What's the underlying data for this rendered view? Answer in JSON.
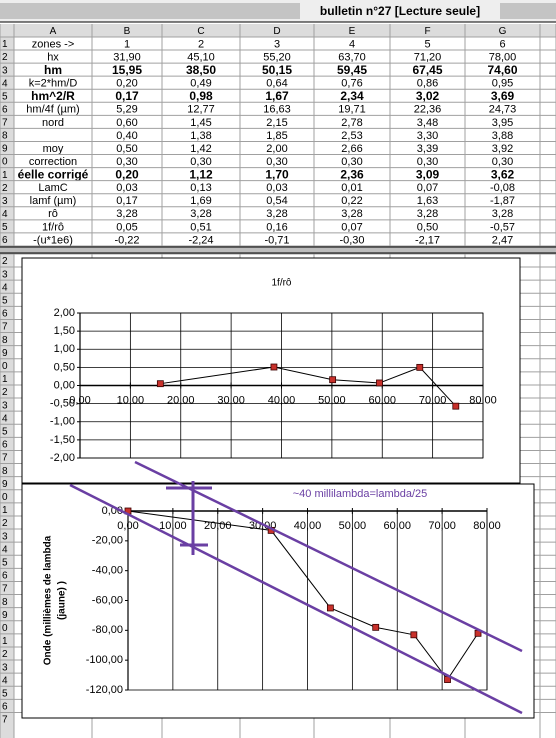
{
  "window": {
    "title": "bulletin n°27  [Lecture seule]"
  },
  "sheet": {
    "columns": [
      "A",
      "B",
      "C",
      "D",
      "E",
      "F",
      "G"
    ],
    "row_numbers": [
      "1",
      "2",
      "3",
      "4",
      "5",
      "6",
      "7",
      "8",
      "9",
      "0",
      "1",
      "2",
      "3",
      "4",
      "5",
      "6"
    ],
    "rows": [
      [
        "zones ->",
        "1",
        "2",
        "3",
        "4",
        "5",
        "6"
      ],
      [
        "hx",
        "31,90",
        "45,10",
        "55,20",
        "63,70",
        "71,20",
        "78,00"
      ],
      [
        "hm",
        "15,95",
        "38,50",
        "50,15",
        "59,45",
        "67,45",
        "74,60"
      ],
      [
        "k=2*hm/D",
        "0,20",
        "0,49",
        "0,64",
        "0,76",
        "0,86",
        "0,95"
      ],
      [
        "hm^2/R",
        "0,17",
        "0,98",
        "1,67",
        "2,34",
        "3,02",
        "3,69"
      ],
      [
        "hm/4f (µm)",
        "5,29",
        "12,77",
        "16,63",
        "19,71",
        "22,36",
        "24,73"
      ],
      [
        "nord",
        "0,60",
        "1,45",
        "2,15",
        "2,78",
        "3,48",
        "3,95"
      ],
      [
        "",
        "0,40",
        "1,38",
        "1,85",
        "2,53",
        "3,30",
        "3,88"
      ],
      [
        "moy",
        "0,50",
        "1,42",
        "2,00",
        "2,66",
        "3,39",
        "3,92"
      ],
      [
        "correction",
        "0,30",
        "0,30",
        "0,30",
        "0,30",
        "0,30",
        "0,30"
      ],
      [
        "éelle corrigé",
        "0,20",
        "1,12",
        "1,70",
        "2,36",
        "3,09",
        "3,62"
      ],
      [
        "LamC",
        "0,03",
        "0,13",
        "0,03",
        "0,01",
        "0,07",
        "-0,08"
      ],
      [
        "lamf (µm)",
        "0,17",
        "1,69",
        "0,54",
        "0,22",
        "1,63",
        "-1,87"
      ],
      [
        "rô",
        "3,28",
        "3,28",
        "3,28",
        "3,28",
        "3,28",
        "3,28"
      ],
      [
        "1f/rô",
        "0,05",
        "0,51",
        "0,16",
        "0,07",
        "0,50",
        "-0,57"
      ],
      [
        "-(u*1e6)",
        "-0,22",
        "-2,24",
        "-0,71",
        "-0,30",
        "-2,17",
        "2,47"
      ]
    ],
    "lower_row_numbers": [
      "2",
      "3",
      "4",
      "5",
      "6",
      "7",
      "8",
      "9",
      "0",
      "1",
      "2",
      "3",
      "4",
      "5",
      "6",
      "7",
      "8",
      "9",
      "0",
      "1",
      "2",
      "3",
      "4",
      "5",
      "6",
      "7",
      "8",
      "9",
      "0",
      "1",
      "2",
      "3",
      "4",
      "5",
      "6",
      "7"
    ]
  },
  "chart_data": [
    {
      "type": "line",
      "title": "1f/rô",
      "x": [
        15.95,
        38.5,
        50.15,
        59.45,
        67.45,
        74.6
      ],
      "series": [
        {
          "values": [
            0.05,
            0.51,
            0.16,
            0.07,
            0.5,
            -0.57
          ],
          "color": "#c8312b"
        }
      ],
      "xlim": [
        0,
        80
      ],
      "ylim": [
        -2,
        2
      ],
      "xticks": [
        {
          "value": 0,
          "label": "0,00"
        },
        {
          "value": 10,
          "label": "10,00"
        },
        {
          "value": 20,
          "label": "20,00"
        },
        {
          "value": 30,
          "label": "30,00"
        },
        {
          "value": 40,
          "label": "40,00"
        },
        {
          "value": 50,
          "label": "50,00"
        },
        {
          "value": 60,
          "label": "60,00"
        },
        {
          "value": 70,
          "label": "70,00"
        },
        {
          "value": 80,
          "label": "80,00"
        }
      ],
      "yticks": [
        {
          "value": 2,
          "label": "2,00"
        },
        {
          "value": 1.5,
          "label": "1,50"
        },
        {
          "value": 1,
          "label": "1,00"
        },
        {
          "value": 0.5,
          "label": "0,50"
        },
        {
          "value": 0,
          "label": "0,00"
        },
        {
          "value": -0.5,
          "label": "-0,50"
        },
        {
          "value": -1,
          "label": "-1,00"
        },
        {
          "value": -1.5,
          "label": "-1,50"
        },
        {
          "value": -2,
          "label": "-2,00"
        }
      ],
      "grid": true
    },
    {
      "type": "line",
      "ylabel": [
        "Onde (millièmes de lambda",
        "(jaune) )"
      ],
      "annotation": "~40 millilambda=lambda/25",
      "x": [
        0,
        31.9,
        45.1,
        55.2,
        63.7,
        71.2,
        78.0
      ],
      "series": [
        {
          "values": [
            0,
            -13,
            -65,
            -78,
            -83,
            -113,
            -82
          ],
          "color": "#c8312b"
        }
      ],
      "xlim": [
        0,
        80
      ],
      "ylim": [
        -120,
        0
      ],
      "xticks": [
        {
          "value": 0,
          "label": "0,00"
        },
        {
          "value": 10,
          "label": "10,00"
        },
        {
          "value": 20,
          "label": "20,00"
        },
        {
          "value": 30,
          "label": "30,00"
        },
        {
          "value": 40,
          "label": "40,00"
        },
        {
          "value": 50,
          "label": "50,00"
        },
        {
          "value": 60,
          "label": "60,00"
        },
        {
          "value": 70,
          "label": "70,00"
        },
        {
          "value": 80,
          "label": "80,00"
        }
      ],
      "yticks": [
        {
          "value": 0,
          "label": "0,00"
        },
        {
          "value": -20,
          "label": "-20,00"
        },
        {
          "value": -40,
          "label": "-40,00"
        },
        {
          "value": -60,
          "label": "-60,00"
        },
        {
          "value": -80,
          "label": "-80,00"
        },
        {
          "value": -100,
          "label": "-100,00"
        },
        {
          "value": -120,
          "label": "-120,00"
        }
      ],
      "grid": "x"
    }
  ]
}
